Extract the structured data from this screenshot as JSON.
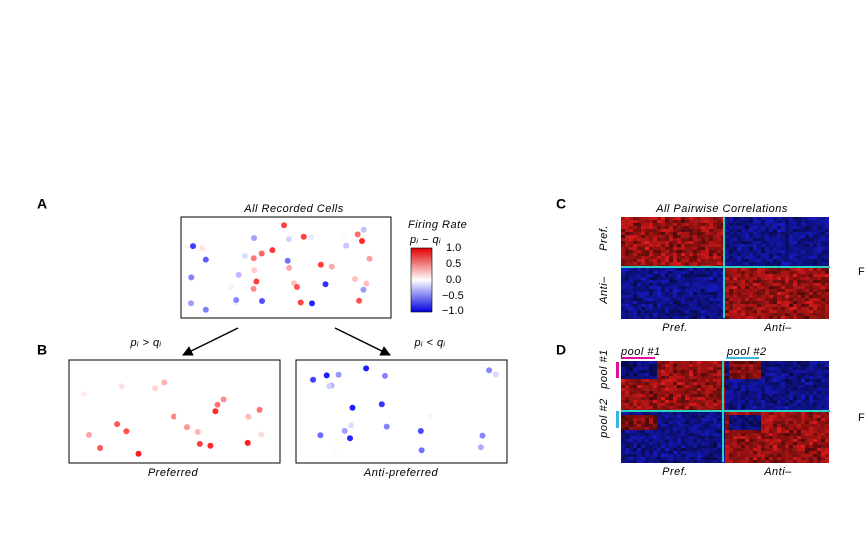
{
  "figure": {
    "panel_labels": [
      "A",
      "B",
      "C",
      "D"
    ],
    "a": {
      "title": "All Recorded Cells",
      "colorbar_title": "Firing Rate",
      "colorbar_subtitle": "pᵢ − qᵢ",
      "colorbar_ticks": [
        "1.0",
        "0.5",
        "0.0",
        "−0.5",
        "−1.0"
      ]
    },
    "b": {
      "left_condition": "pᵢ > qᵢ",
      "right_condition": "pᵢ < qᵢ",
      "left_caption": "Preferred",
      "right_caption": "Anti-preferred"
    },
    "c": {
      "title": "All Pairwise Correlations",
      "row_labels": [
        "Pref.",
        "Anti–"
      ],
      "col_labels": [
        "Pref.",
        "Anti–"
      ],
      "side_label": "F"
    },
    "d": {
      "pool_labels": [
        "pool #1",
        "pool #2"
      ],
      "row_labels": [
        "pool #1",
        "pool #2"
      ],
      "col_labels": [
        "Pref.",
        "Anti–"
      ],
      "side_label": "F"
    }
  }
}
